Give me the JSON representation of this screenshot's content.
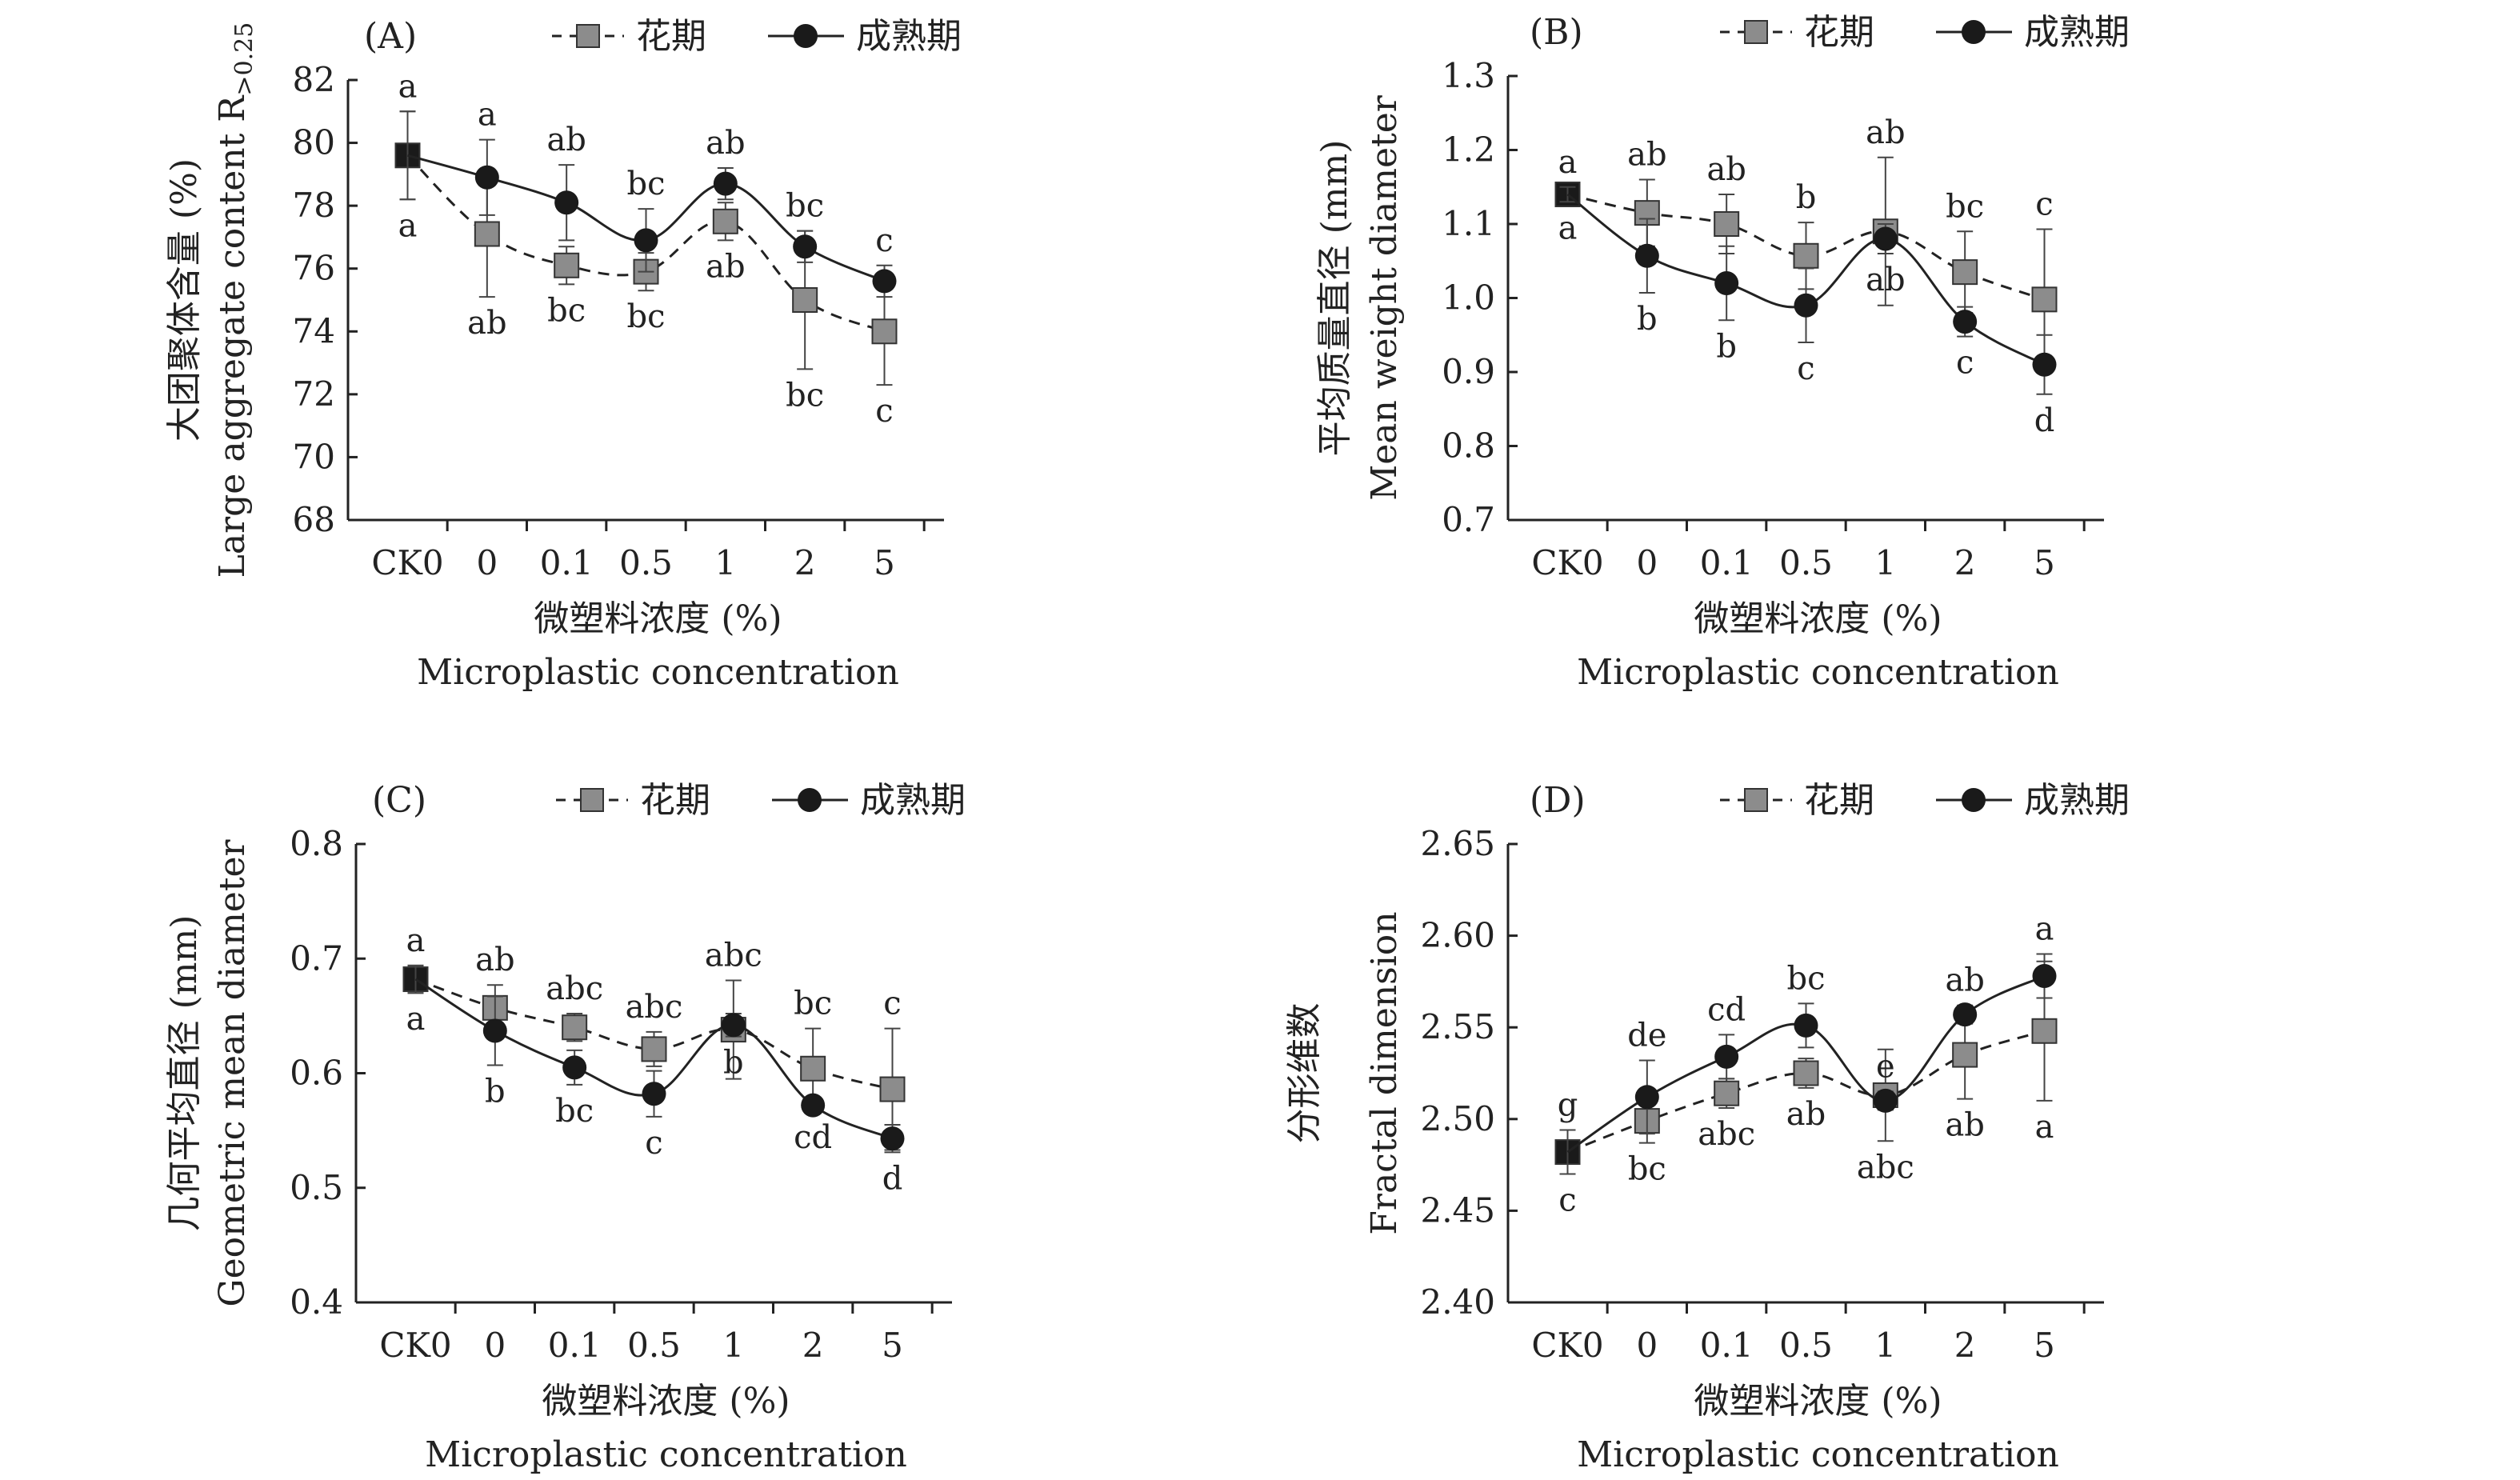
{
  "figure": {
    "legend": {
      "flowering": "花期",
      "maturity": "成熟期"
    },
    "colors": {
      "flowering": "#8c8c8c",
      "maturity": "#1a1a1a",
      "axis": "#222222"
    }
  },
  "chart_data": [
    {
      "type": "line",
      "panel": "(A)",
      "categories": [
        "CK0",
        "0",
        "0.1",
        "0.5",
        "1",
        "2",
        "5"
      ],
      "xlabel_cn": "微塑料浓度 (%)",
      "xlabel_en": "Microplastic concentration",
      "ylabel_cn": "大团聚体含量 (%)",
      "ylabel_en": "Large aggregate content R",
      "ylabel_sub": ">0.25",
      "ylim": [
        68,
        82
      ],
      "yticks": [
        68,
        70,
        72,
        74,
        76,
        78,
        80,
        82
      ],
      "ytick_labels": [
        "68",
        "70",
        "72",
        "74",
        "76",
        "78",
        "80",
        "82"
      ],
      "series": [
        {
          "name": "花期",
          "values": [
            79.6,
            77.1,
            76.1,
            75.9,
            77.5,
            75.0,
            74.0
          ],
          "errors": [
            1.4,
            2.0,
            0.6,
            0.6,
            0.6,
            2.2,
            1.7
          ],
          "letters": [
            "a",
            "ab",
            "bc",
            "bc",
            "ab",
            "bc",
            "c"
          ],
          "letter_pos": "below"
        },
        {
          "name": "成熟期",
          "values": [
            79.6,
            78.9,
            78.1,
            76.9,
            78.7,
            76.7,
            75.6
          ],
          "errors": [
            1.4,
            1.2,
            1.2,
            1.0,
            0.5,
            0.5,
            0.5
          ],
          "letters": [
            "a",
            "a",
            "ab",
            "bc",
            "ab",
            "bc",
            "c"
          ],
          "letter_pos": "above"
        }
      ]
    },
    {
      "type": "line",
      "panel": "(B)",
      "categories": [
        "CK0",
        "0",
        "0.1",
        "0.5",
        "1",
        "2",
        "5"
      ],
      "xlabel_cn": "微塑料浓度 (%)",
      "xlabel_en": "Microplastic concentration",
      "ylabel_cn": "平均质量直径 (mm)",
      "ylabel_en": "Mean weight diameter",
      "ylabel_sub": "",
      "ylim": [
        0.7,
        1.3
      ],
      "yticks": [
        0.7,
        0.8,
        0.9,
        1.0,
        1.1,
        1.2,
        1.3
      ],
      "ytick_labels": [
        "0.7",
        "0.8",
        "0.9",
        "1.0",
        "1.1",
        "1.2",
        "1.3"
      ],
      "series": [
        {
          "name": "花期",
          "values": [
            1.14,
            1.115,
            1.1,
            1.057,
            1.09,
            1.035,
            0.998
          ],
          "errors": [
            0.01,
            0.045,
            0.04,
            0.045,
            0.1,
            0.055,
            0.095
          ],
          "letters": [
            "a",
            "ab",
            "ab",
            "b",
            "ab",
            "bc",
            "c"
          ],
          "letter_pos": "above"
        },
        {
          "name": "成熟期",
          "values": [
            1.14,
            1.057,
            1.02,
            0.99,
            1.08,
            0.968,
            0.91
          ],
          "errors": [
            0.01,
            0.05,
            0.05,
            0.05,
            0.02,
            0.02,
            0.04
          ],
          "letters": [
            "a",
            "b",
            "b",
            "c",
            "ab",
            "c",
            "d"
          ],
          "letter_pos": "below"
        }
      ]
    },
    {
      "type": "line",
      "panel": "(C)",
      "categories": [
        "CK0",
        "0",
        "0.1",
        "0.5",
        "1",
        "2",
        "5"
      ],
      "xlabel_cn": "微塑料浓度 (%)",
      "xlabel_en": "Microplastic concentration",
      "ylabel_cn": "几何平均直径 (mm)",
      "ylabel_en": "Geometric mean diameter",
      "ylabel_sub": "",
      "ylim": [
        0.4,
        0.8
      ],
      "yticks": [
        0.4,
        0.5,
        0.6,
        0.7,
        0.8
      ],
      "ytick_labels": [
        "0.4",
        "0.5",
        "0.6",
        "0.7",
        "0.8"
      ],
      "series": [
        {
          "name": "花期",
          "values": [
            0.682,
            0.657,
            0.64,
            0.621,
            0.638,
            0.604,
            0.586
          ],
          "errors": [
            0.012,
            0.02,
            0.012,
            0.015,
            0.043,
            0.035,
            0.053
          ],
          "letters": [
            "a",
            "ab",
            "abc",
            "abc",
            "abc",
            "bc",
            "c"
          ],
          "letter_pos": "above"
        },
        {
          "name": "成熟期",
          "values": [
            0.682,
            0.637,
            0.605,
            0.582,
            0.642,
            0.572,
            0.543
          ],
          "errors": [
            0.012,
            0.03,
            0.015,
            0.02,
            0.01,
            0.005,
            0.012
          ],
          "letters": [
            "a",
            "b",
            "bc",
            "c",
            "b",
            "cd",
            "d"
          ],
          "letter_pos": "below"
        }
      ]
    },
    {
      "type": "line",
      "panel": "(D)",
      "categories": [
        "CK0",
        "0",
        "0.1",
        "0.5",
        "1",
        "2",
        "5"
      ],
      "xlabel_cn": "微塑料浓度 (%)",
      "xlabel_en": "Microplastic concentration",
      "ylabel_cn": "分形维数",
      "ylabel_en": "Fractal dimension",
      "ylabel_sub": "",
      "ylim": [
        2.4,
        2.65
      ],
      "yticks": [
        2.4,
        2.45,
        2.5,
        2.55,
        2.6,
        2.65
      ],
      "ytick_labels": [
        "2.40",
        "2.45",
        "2.50",
        "2.55",
        "2.60",
        "2.65"
      ],
      "series": [
        {
          "name": "花期",
          "values": [
            2.482,
            2.499,
            2.514,
            2.525,
            2.513,
            2.535,
            2.548
          ],
          "errors": [
            0.012,
            0.012,
            0.008,
            0.008,
            0.025,
            0.024,
            0.038
          ],
          "letters": [
            "c",
            "bc",
            "abc",
            "ab",
            "abc",
            "ab",
            "a"
          ],
          "letter_pos": "below"
        },
        {
          "name": "成熟期",
          "values": [
            2.482,
            2.512,
            2.534,
            2.551,
            2.51,
            2.557,
            2.578
          ],
          "errors": [
            0.012,
            0.02,
            0.012,
            0.012,
            0.005,
            0.005,
            0.012
          ],
          "letters": [
            "g",
            "de",
            "cd",
            "bc",
            "e",
            "ab",
            "a"
          ],
          "letter_pos": "above"
        }
      ]
    }
  ]
}
